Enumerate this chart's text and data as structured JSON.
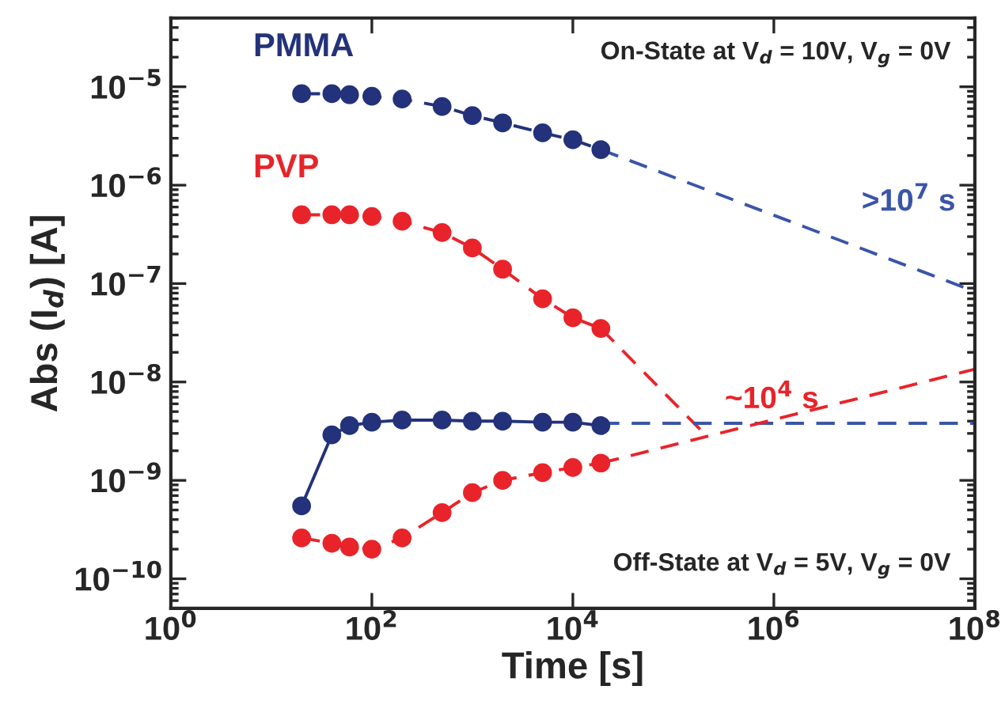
{
  "chart_data": {
    "type": "line",
    "xlabel": "Time [s]",
    "ylabel": "Abs (I$_{d}$) [A]",
    "log": "xy",
    "xlim": [
      1,
      100000000
    ],
    "ylim": [
      5e-11,
      5e-05
    ],
    "xticks": [
      {
        "value": 1,
        "label": "10$^{0}$"
      },
      {
        "value": 100,
        "label": "10$^{2}$"
      },
      {
        "value": 10000,
        "label": "10$^{4}$"
      },
      {
        "value": 1000000,
        "label": "10$^{6}$"
      },
      {
        "value": 100000000,
        "label": "10$^{8}$"
      }
    ],
    "yticks": [
      {
        "value": 1e-10,
        "label": "10$^{−10}$"
      },
      {
        "value": 1e-09,
        "label": "10$^{−9}$"
      },
      {
        "value": 1e-08,
        "label": "10$^{−8}$"
      },
      {
        "value": 1e-07,
        "label": "10$^{−7}$"
      },
      {
        "value": 1e-06,
        "label": "10$^{−6}$"
      },
      {
        "value": 1e-05,
        "label": "10$^{−5}$"
      }
    ],
    "grid": false,
    "legend": false,
    "marker": "circle",
    "annotations": [
      "On-State at V$_{d}$ = 10V, V$_{g}$ = 0V",
      "Off-State at V$_{d}$ = 5V, V$_{g}$ = 0V"
    ],
    "series": [
      {
        "name": "PMMA",
        "color": "#23327a",
        "line_style": "dashed",
        "x": [
          20,
          40,
          60,
          100,
          200,
          500,
          1000,
          2000,
          5000,
          10000,
          19000
        ],
        "values": [
          8.5e-06,
          8.5e-06,
          8.3e-06,
          8e-06,
          7.5e-06,
          6.3e-06,
          5.1e-06,
          4.3e-06,
          3.4e-06,
          2.9e-06,
          2.3e-06
        ]
      },
      {
        "name": "PVP",
        "color": "#e8242a",
        "line_style": "dashed",
        "x": [
          20,
          40,
          60,
          100,
          200,
          500,
          1000,
          2000,
          5000,
          10000,
          19000
        ],
        "values": [
          5e-07,
          5e-07,
          5e-07,
          4.8e-07,
          4.3e-07,
          3.3e-07,
          2.3e-07,
          1.4e-07,
          7e-08,
          4.5e-08,
          3.5e-08
        ]
      },
      {
        "color": "#23327a",
        "line_style": "solid",
        "x": [
          20,
          40,
          60,
          100,
          200,
          500,
          1000,
          2000,
          5000,
          10000,
          19000
        ],
        "values": [
          5.5e-10,
          2.9e-09,
          3.6e-09,
          3.9e-09,
          4.1e-09,
          4.1e-09,
          4e-09,
          4e-09,
          3.9e-09,
          3.9e-09,
          3.6e-09
        ]
      },
      {
        "color": "#e8242a",
        "line_style": "dashed",
        "x": [
          20,
          40,
          60,
          100,
          200,
          500,
          1000,
          2000,
          5000,
          10000,
          19000
        ],
        "values": [
          2.6e-10,
          2.3e-10,
          2.1e-10,
          2e-10,
          2.6e-10,
          4.7e-10,
          7.5e-10,
          1e-09,
          1.2e-09,
          1.35e-09,
          1.5e-09
        ]
      },
      {
        "name": ">10$^{7}$ s",
        "type": "line",
        "color": "#3a55a8",
        "line_style": "dashed",
        "marker": "none",
        "x": [
          19000,
          100000000
        ],
        "values": [
          2.3e-06,
          8.3e-08
        ]
      },
      {
        "name": "~10$^{4}$ s",
        "type": "line",
        "color": "#e8242a",
        "line_style": "dashed",
        "marker": "none",
        "x": [
          19000,
          190000
        ],
        "values": [
          3.5e-08,
          3.2e-09
        ]
      },
      {
        "type": "line",
        "color": "#3a55a8",
        "line_style": "dashed",
        "marker": "none",
        "x": [
          19000,
          100000000
        ],
        "values": [
          3.8e-09,
          3.8e-09
        ]
      },
      {
        "type": "line",
        "color": "#e8242a",
        "line_style": "dashed",
        "marker": "none",
        "x": [
          19000,
          100000000
        ],
        "values": [
          1.5e-09,
          1.35e-08
        ]
      }
    ]
  }
}
